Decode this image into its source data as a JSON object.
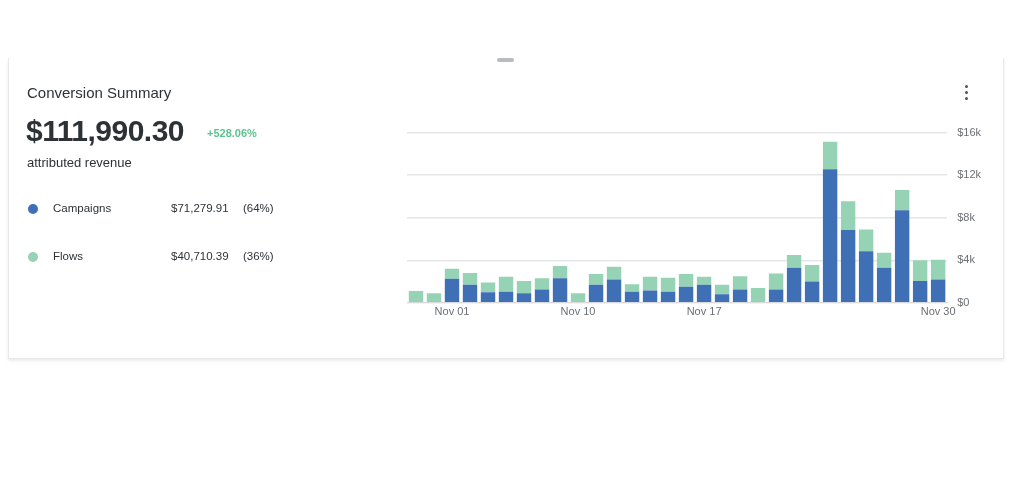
{
  "chart_data": {
    "type": "bar",
    "title": "Conversion Summary",
    "annotations": [
      "$111,990.30",
      "+528.06%",
      "attributed revenue",
      "$71,279.91",
      "(64%)",
      "$40,710.39",
      "(36%)"
    ],
    "categories": [
      null,
      null,
      "Nov 01",
      null,
      null,
      null,
      null,
      null,
      null,
      "Nov 10",
      null,
      null,
      null,
      null,
      null,
      null,
      "Nov 17",
      null,
      null,
      null,
      null,
      null,
      null,
      null,
      null,
      null,
      null,
      null,
      null,
      "Nov 30"
    ],
    "stacked": true,
    "series": [
      {
        "name": "Campaigns",
        "color": "#3f6fb5",
        "values": [
          0,
          0,
          2250,
          1700,
          1000,
          1050,
          900,
          1250,
          2300,
          0,
          1700,
          2200,
          1050,
          1150,
          1050,
          1500,
          1700,
          800,
          1250,
          0,
          1250,
          3300,
          2000,
          12550,
          6850,
          4850,
          3300,
          8700,
          2050,
          2200
        ]
      },
      {
        "name": "Flows",
        "color": "#96d3b5",
        "values": [
          1100,
          900,
          950,
          1100,
          900,
          1400,
          1150,
          1050,
          1150,
          900,
          1000,
          1200,
          700,
          1300,
          1300,
          1200,
          750,
          900,
          1250,
          1400,
          1500,
          1200,
          1550,
          2600,
          2700,
          2050,
          1400,
          1900,
          1950,
          1850
        ]
      }
    ],
    "ylim": [
      0,
      16000
    ],
    "yticks": [
      {
        "value": 0,
        "label": "$0"
      },
      {
        "value": 4000,
        "label": "$4k"
      },
      {
        "value": 8000,
        "label": "$8k"
      },
      {
        "value": 12000,
        "label": "$12k"
      },
      {
        "value": 16000,
        "label": "$16k"
      }
    ],
    "grid": "y",
    "legend": "left"
  }
}
